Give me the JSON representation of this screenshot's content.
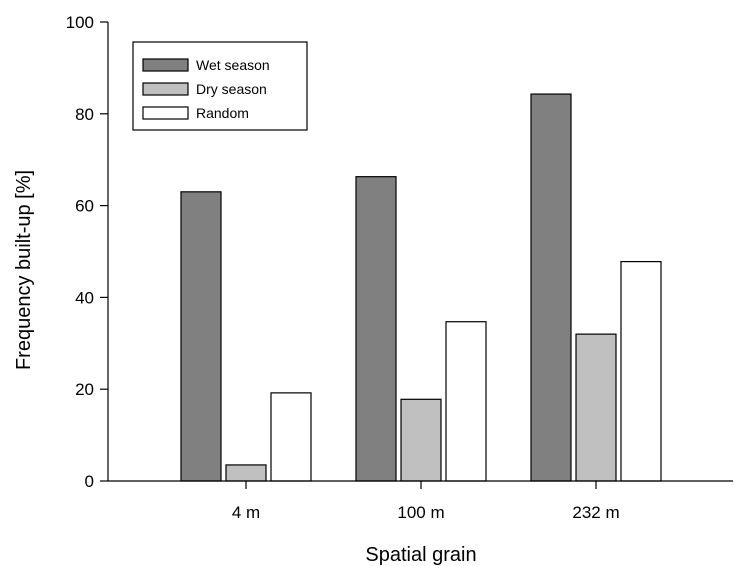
{
  "chart_data": {
    "type": "bar",
    "categories": [
      "4 m",
      "100 m",
      "232 m"
    ],
    "series": [
      {
        "name": "Wet season",
        "values": [
          63,
          66.3,
          84.3
        ],
        "color": "#808080"
      },
      {
        "name": "Dry season",
        "values": [
          3.5,
          17.8,
          32
        ],
        "color": "#c0c0c0"
      },
      {
        "name": "Random",
        "values": [
          19.2,
          34.7,
          47.8
        ],
        "color": "#ffffff"
      }
    ],
    "xlabel": "Spatial grain",
    "ylabel": "Frequency built-up [%]",
    "ylim": [
      0,
      100
    ],
    "yticks": [
      0,
      20,
      40,
      60,
      80,
      100
    ],
    "grid": false,
    "legend_position": "top-left"
  }
}
